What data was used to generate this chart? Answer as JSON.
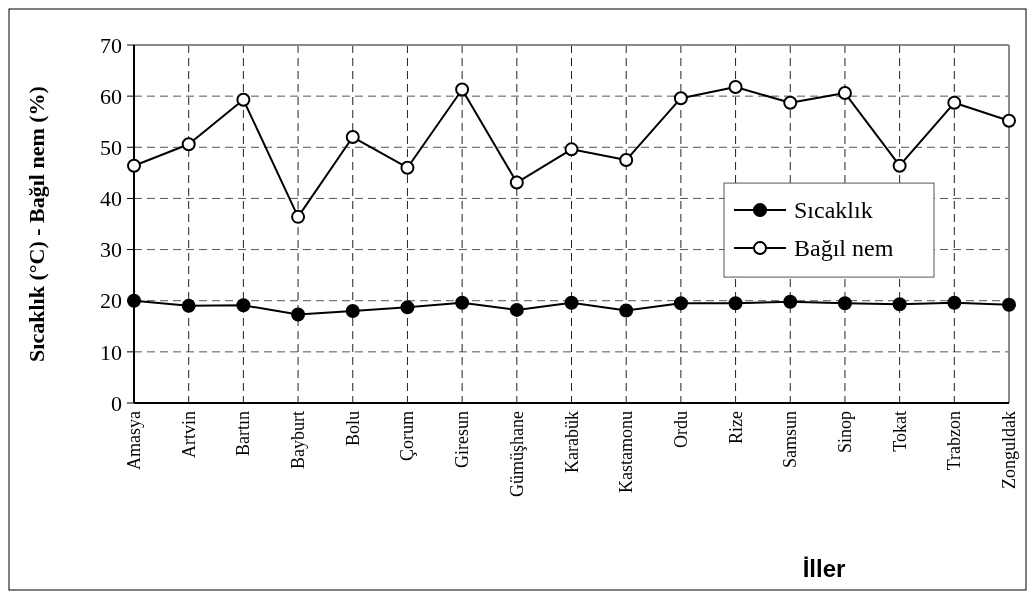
{
  "chart_data": {
    "type": "line",
    "xlabel": "İller",
    "ylabel": "Sıcaklık (°C) - Bağıl nem (%)",
    "categories": [
      "Amasya",
      "Artvin",
      "Bartın",
      "Bayburt",
      "Bolu",
      "Çorum",
      "Giresun",
      "Gümüşhane",
      "Karabük",
      "Kastamonu",
      "Ordu",
      "Rize",
      "Samsun",
      "Sinop",
      "Tokat",
      "Trabzon",
      "Zonguldak"
    ],
    "series": [
      {
        "name": "Sıcaklık",
        "color": "#000000",
        "values": [
          20,
          19,
          19.1,
          17.3,
          18,
          18.7,
          19.6,
          18.2,
          19.6,
          18.1,
          19.5,
          19.5,
          19.8,
          19.5,
          19.3,
          19.6,
          19.2
        ]
      },
      {
        "name": "Bağıl nem",
        "color": "#000000",
        "values": [
          46.4,
          50.6,
          59.3,
          36.4,
          52,
          46,
          61.3,
          43.1,
          49.6,
          47.5,
          59.6,
          61.8,
          58.7,
          60.6,
          46.4,
          58.7,
          55.2
        ]
      }
    ],
    "ylim": [
      0,
      70
    ],
    "yticks": [
      0,
      10,
      20,
      30,
      40,
      50,
      60,
      70
    ],
    "grid": true,
    "legend": "right",
    "marker": "circle",
    "line_style": "solid"
  }
}
